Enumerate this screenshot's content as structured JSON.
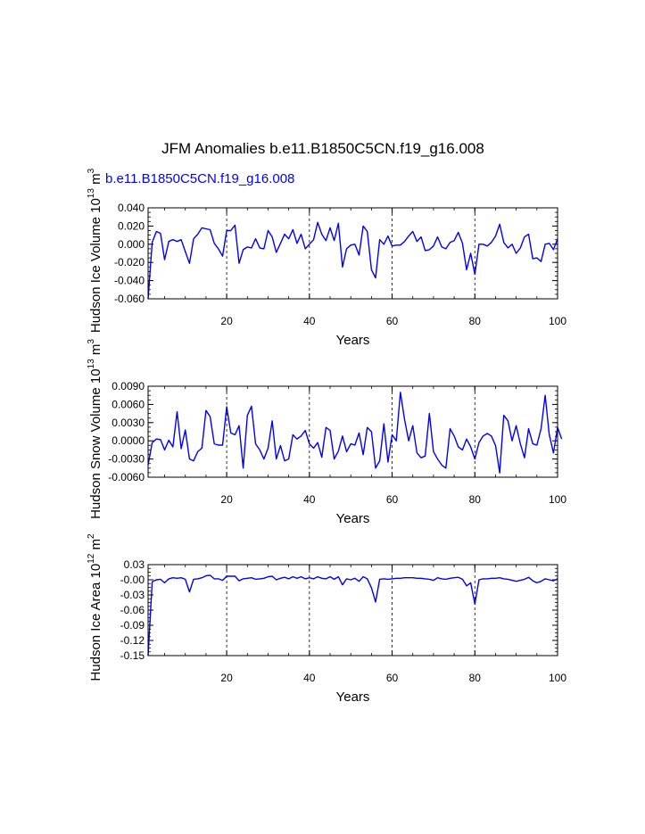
{
  "chart_data": {
    "title": "JFM Anomalies b.e11.B1850C5CN.f19_g16.008",
    "type": "line",
    "panels": [
      {
        "type": "line",
        "case_label": "b.e11.B1850C5CN.f19_g16.008",
        "ylabel": {
          "prefix": "Hudson Ice Volume 10",
          "exp": "13",
          "unit": " m",
          "unit_exp": "3"
        },
        "xlabel": "Years",
        "xlim": [
          1,
          100
        ],
        "ylim": [
          -0.06,
          0.04
        ],
        "xticks": [
          20,
          40,
          60,
          80,
          100
        ],
        "xtick_labels": [
          "20",
          "40",
          "60",
          "80",
          "100"
        ],
        "yticks": [
          -0.06,
          -0.04,
          -0.02,
          0.0,
          0.02,
          0.04
        ],
        "ytick_labels": [
          "-0.060",
          "-0.040",
          "-0.020",
          "0.000",
          "0.020",
          "0.040"
        ],
        "minor_ystep": 0.005,
        "grid": "vertical dashed at major x ticks",
        "series": [
          {
            "name": "b.e11.B1850C5CN.f19_g16.008",
            "color": "#0000ff",
            "values": [
              -0.06,
              0.002,
              0.014,
              0.012,
              -0.017,
              0.003,
              0.005,
              0.003,
              0.005,
              -0.008,
              -0.021,
              0.006,
              0.011,
              0.018,
              0.017,
              0.016,
              0.001,
              -0.005,
              -0.013,
              0.015,
              0.015,
              0.021,
              -0.021,
              -0.006,
              -0.003,
              -0.004,
              0.006,
              -0.004,
              -0.005,
              0.015,
              0.008,
              -0.009,
              0.001,
              0.011,
              0.006,
              0.016,
              0.001,
              0.011,
              -0.005,
              0.0,
              0.005,
              0.024,
              0.011,
              0.004,
              0.018,
              0.004,
              0.023,
              -0.025,
              -0.005,
              -0.001,
              0.0,
              -0.012,
              0.02,
              0.014,
              -0.028,
              -0.037,
              0.005,
              0.0,
              0.009,
              -0.002,
              -0.001,
              -0.001,
              0.003,
              0.009,
              0.014,
              0.003,
              0.008,
              -0.007,
              -0.006,
              -0.002,
              0.008,
              -0.003,
              -0.005,
              0.002,
              0.004,
              0.013,
              0.001,
              -0.028,
              -0.01,
              -0.033,
              0.0,
              0.0,
              -0.002,
              0.002,
              0.009,
              0.022,
              0.002,
              -0.004,
              0.0,
              -0.01,
              -0.004,
              0.008,
              0.011,
              -0.016,
              -0.015,
              -0.019,
              0.0,
              0.001,
              -0.006,
              0.006
            ]
          }
        ]
      },
      {
        "type": "line",
        "case_label": "",
        "ylabel": {
          "prefix": "Hudson Snow Volume 10",
          "exp": "13",
          "unit": " m",
          "unit_exp": "3"
        },
        "xlabel": "Years",
        "xlim": [
          1,
          100
        ],
        "ylim": [
          -0.006,
          0.009
        ],
        "xticks": [
          20,
          40,
          60,
          80,
          100
        ],
        "xtick_labels": [
          "20",
          "40",
          "60",
          "80",
          "100"
        ],
        "yticks": [
          -0.006,
          -0.003,
          0.0,
          0.003,
          0.006,
          0.009
        ],
        "ytick_labels": [
          "-0.0060",
          "-0.0030",
          "0.0000",
          "0.0030",
          "0.0060",
          "0.0090"
        ],
        "minor_ystep": 0.00075,
        "grid": "vertical dashed at major x ticks",
        "series": [
          {
            "name": "b.e11.B1850C5CN.f19_g16.008",
            "color": "#0000ff",
            "values": [
              -0.004,
              -0.0003,
              0.0003,
              0.0002,
              -0.0015,
              0.0001,
              -0.001,
              0.0048,
              -0.0013,
              0.0018,
              -0.003,
              -0.0033,
              -0.0018,
              -0.0012,
              0.005,
              0.004,
              -0.0005,
              -0.0007,
              -0.0007,
              0.0056,
              0.0013,
              0.001,
              0.0025,
              -0.0045,
              0.0042,
              0.0057,
              -0.0005,
              -0.0015,
              -0.003,
              -0.0012,
              0.0033,
              -0.003,
              -0.0008,
              -0.0033,
              -0.003,
              0.001,
              0.0003,
              0.0008,
              0.0017,
              -0.0005,
              -0.0012,
              -0.0003,
              -0.0027,
              0.0022,
              0.0017,
              -0.003,
              -0.0017,
              0.0008,
              -0.0018,
              -0.0005,
              -0.0007,
              0.0013,
              -0.0023,
              0.0022,
              0.0015,
              -0.0045,
              -0.0033,
              0.0028,
              -0.0035,
              0.001,
              0.0,
              0.008,
              0.0035,
              0.0,
              0.0025,
              -0.002,
              -0.0028,
              -0.0025,
              0.0045,
              -0.0018,
              -0.003,
              -0.004,
              -0.0045,
              0.002,
              0.0008,
              -0.001,
              -0.0015,
              0.0003,
              -0.001,
              -0.003,
              -0.0003,
              0.0008,
              0.0012,
              0.0008,
              -0.0008,
              -0.0053,
              0.0042,
              0.0033,
              0.0,
              0.0025,
              -0.0005,
              -0.0028,
              0.002,
              -0.0005,
              -0.0007,
              0.002,
              0.0075,
              0.001,
              -0.002,
              0.0022,
              0.0003
            ]
          }
        ]
      },
      {
        "type": "line",
        "case_label": "",
        "ylabel": {
          "prefix": "Hudson Ice Area 10",
          "exp": "12",
          "unit": " m",
          "unit_exp": "2"
        },
        "xlabel": "Years",
        "xlim": [
          1,
          100
        ],
        "ylim": [
          -0.15,
          0.03
        ],
        "xticks": [
          20,
          40,
          60,
          80,
          100
        ],
        "xtick_labels": [
          "20",
          "40",
          "60",
          "80",
          "100"
        ],
        "yticks": [
          -0.15,
          -0.12,
          -0.09,
          -0.06,
          -0.03,
          0.0,
          0.03
        ],
        "ytick_labels": [
          "-0.15",
          "-0.12",
          "-0.09",
          "-0.06",
          "-0.03",
          "-0.00",
          "0.03"
        ],
        "minor_ystep": 0.0075,
        "grid": "vertical dashed at major x ticks",
        "series": [
          {
            "name": "b.e11.B1850C5CN.f19_g16.008",
            "color": "#0000ff",
            "values": [
              -0.15,
              -0.004,
              0.0,
              0.001,
              -0.006,
              0.002,
              0.004,
              0.003,
              0.004,
              0.001,
              -0.024,
              0.001,
              0.002,
              0.004,
              0.008,
              0.009,
              0.002,
              0.002,
              -0.001,
              0.007,
              0.007,
              0.007,
              -0.002,
              0.002,
              0.003,
              0.004,
              0.001,
              0.002,
              0.003,
              0.006,
              0.007,
              0.0,
              0.003,
              0.005,
              0.002,
              0.006,
              0.003,
              0.006,
              0.002,
              0.004,
              0.002,
              0.006,
              0.003,
              0.002,
              0.006,
              0.001,
              0.006,
              -0.01,
              0.002,
              0.0,
              0.003,
              -0.003,
              0.006,
              0.002,
              -0.016,
              -0.044,
              0.001,
              0.002,
              0.001,
              0.002,
              0.003,
              0.003,
              0.004,
              0.004,
              0.004,
              0.003,
              0.003,
              0.002,
              0.001,
              -0.001,
              0.004,
              0.002,
              0.001,
              0.003,
              0.004,
              0.005,
              0.001,
              -0.012,
              -0.006,
              -0.048,
              0.0,
              0.002,
              0.002,
              0.003,
              0.003,
              0.004,
              0.002,
              0.001,
              -0.001,
              -0.003,
              -0.001,
              0.001,
              0.005,
              -0.002,
              -0.006,
              -0.003,
              0.002,
              0.0,
              -0.002,
              0.002
            ]
          }
        ]
      }
    ]
  }
}
